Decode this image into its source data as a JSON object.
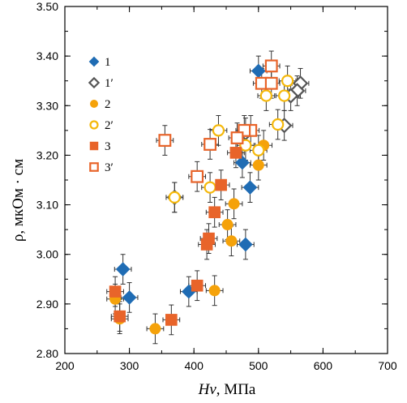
{
  "chart_data": {
    "type": "scatter",
    "xlabel_italic": "Hv",
    "xlabel_rest": ", МПа",
    "ylabel": "ρ, мкОм · см",
    "xlim": [
      200,
      700
    ],
    "ylim": [
      2.8,
      3.5
    ],
    "x_ticks": [
      200,
      300,
      400,
      500,
      600,
      700
    ],
    "y_ticks": [
      2.8,
      2.9,
      3.0,
      3.1,
      3.2,
      3.3,
      3.4,
      3.5
    ],
    "y_tick_labels": [
      "2.80",
      "2.90",
      "3.00",
      "3.10",
      "3.20",
      "3.30",
      "3.40",
      "3.50"
    ],
    "grid": false,
    "legend_position": "upper-left",
    "error_bars": {
      "x": 13,
      "y": 0.03
    },
    "series": [
      {
        "name": "1",
        "marker": "diamond",
        "filled": true,
        "color": "#1f6cb4",
        "points": [
          [
            500,
            3.37
          ],
          [
            475,
            3.185
          ],
          [
            487,
            3.135
          ],
          [
            480,
            3.02
          ],
          [
            290,
            2.97
          ],
          [
            300,
            2.913
          ],
          [
            392,
            2.925
          ]
        ]
      },
      {
        "name": "1′",
        "marker": "diamond",
        "filled": false,
        "color": "#555555",
        "points": [
          [
            565,
            3.345
          ],
          [
            560,
            3.33
          ],
          [
            550,
            3.32
          ],
          [
            540,
            3.26
          ],
          [
            370,
            3.115
          ],
          [
            480,
            3.245
          ]
        ]
      },
      {
        "name": "2",
        "marker": "circle",
        "filled": true,
        "color": "#f5a20a",
        "points": [
          [
            508,
            3.22
          ],
          [
            500,
            3.18
          ],
          [
            462,
            3.102
          ],
          [
            452,
            3.06
          ],
          [
            458,
            3.027
          ],
          [
            432,
            2.927
          ],
          [
            278,
            2.91
          ],
          [
            340,
            2.85
          ],
          [
            285,
            2.87
          ]
        ]
      },
      {
        "name": "2′",
        "marker": "circle",
        "filled": false,
        "color": "#f5b80a",
        "points": [
          [
            545,
            3.35
          ],
          [
            540,
            3.32
          ],
          [
            512,
            3.32
          ],
          [
            530,
            3.262
          ],
          [
            438,
            3.25
          ],
          [
            480,
            3.22
          ],
          [
            500,
            3.21
          ],
          [
            425,
            3.135
          ],
          [
            370,
            3.115
          ]
        ]
      },
      {
        "name": "3",
        "marker": "square",
        "filled": true,
        "color": "#e8642a",
        "points": [
          [
            465,
            3.205
          ],
          [
            442,
            3.14
          ],
          [
            432,
            3.085
          ],
          [
            423,
            3.032
          ],
          [
            420,
            3.02
          ],
          [
            405,
            2.937
          ],
          [
            365,
            2.868
          ],
          [
            278,
            2.925
          ],
          [
            285,
            2.875
          ]
        ]
      },
      {
        "name": "3′",
        "marker": "square",
        "filled": false,
        "color": "#e8642a",
        "points": [
          [
            520,
            3.38
          ],
          [
            505,
            3.345
          ],
          [
            520,
            3.345
          ],
          [
            488,
            3.25
          ],
          [
            478,
            3.25
          ],
          [
            467,
            3.235
          ],
          [
            355,
            3.23
          ],
          [
            425,
            3.222
          ],
          [
            405,
            3.157
          ]
        ]
      }
    ]
  }
}
